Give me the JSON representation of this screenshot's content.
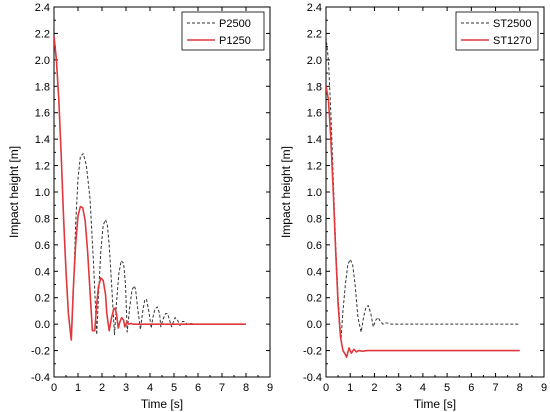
{
  "chart_data": [
    {
      "type": "line",
      "xlabel": "Time [s]",
      "ylabel": "Impact height [m]",
      "xlim": [
        0,
        9
      ],
      "ylim": [
        -0.4,
        2.4
      ],
      "xticks": [
        "0",
        "1",
        "2",
        "3",
        "4",
        "5",
        "6",
        "7",
        "8",
        "9"
      ],
      "yticks": [
        "-0.4",
        "-0.2",
        "0.0",
        "0.2",
        "0.4",
        "0.6",
        "0.8",
        "1.0",
        "1.2",
        "1.4",
        "1.6",
        "1.8",
        "2.0",
        "2.2",
        "2.4"
      ],
      "legend_position": "top-right",
      "series": [
        {
          "name": "P2500",
          "style": "dashed",
          "color": "#333333",
          "x": [
            0,
            0.1,
            0.2,
            0.3,
            0.4,
            0.5,
            0.6,
            0.72,
            0.8,
            0.9,
            1.0,
            1.1,
            1.22,
            1.35,
            1.5,
            1.65,
            1.78,
            1.85,
            1.95,
            2.05,
            2.15,
            2.22,
            2.3,
            2.4,
            2.52,
            2.6,
            2.7,
            2.8,
            2.9,
            2.98,
            3.05,
            3.15,
            3.25,
            3.35,
            3.4,
            3.5,
            3.6,
            3.7,
            3.78,
            3.85,
            3.95,
            4.05,
            4.12,
            4.2,
            4.3,
            4.4,
            4.45,
            4.55,
            4.65,
            4.73,
            4.8,
            4.9,
            5.0,
            5.05,
            5.15,
            5.25,
            5.35,
            5.42,
            5.55,
            5.7,
            5.85,
            6.0,
            8.0
          ],
          "y": [
            2.18,
            2.0,
            1.7,
            1.28,
            0.8,
            0.4,
            0.08,
            -0.12,
            0.2,
            0.75,
            1.1,
            1.27,
            1.29,
            1.2,
            0.95,
            0.45,
            -0.08,
            0.2,
            0.55,
            0.75,
            0.79,
            0.75,
            0.6,
            0.3,
            -0.08,
            0.15,
            0.38,
            0.48,
            0.46,
            0.3,
            -0.06,
            0.12,
            0.26,
            0.29,
            0.26,
            0.1,
            -0.04,
            0.1,
            0.18,
            0.19,
            0.1,
            -0.03,
            0.05,
            0.11,
            0.13,
            0.08,
            -0.02,
            0.04,
            0.08,
            0.08,
            0.04,
            -0.02,
            0.03,
            0.05,
            0.03,
            -0.01,
            0.02,
            0.02,
            0.0,
            0.005,
            0.0,
            0.0,
            0.0
          ]
        },
        {
          "name": "P1250",
          "style": "solid",
          "color": "#e0383c",
          "x": [
            0,
            0.1,
            0.2,
            0.3,
            0.4,
            0.5,
            0.6,
            0.72,
            0.8,
            0.9,
            1.0,
            1.1,
            1.2,
            1.3,
            1.4,
            1.5,
            1.6,
            1.7,
            1.78,
            1.85,
            1.95,
            2.05,
            2.15,
            2.2,
            2.3,
            2.4,
            2.5,
            2.55,
            2.6,
            2.68,
            2.75,
            2.82,
            2.9,
            2.95,
            3.0,
            3.05,
            3.1,
            3.2,
            3.3,
            3.5,
            8.0
          ],
          "y": [
            2.18,
            2.0,
            1.7,
            1.28,
            0.8,
            0.4,
            0.08,
            -0.12,
            0.25,
            0.6,
            0.82,
            0.89,
            0.88,
            0.78,
            0.55,
            0.25,
            -0.05,
            -0.05,
            0.15,
            0.28,
            0.35,
            0.33,
            0.22,
            0.08,
            -0.05,
            0.05,
            0.12,
            0.12,
            0.08,
            -0.03,
            0.02,
            0.05,
            0.03,
            -0.02,
            0.0,
            0.02,
            0.0,
            0.005,
            0.0,
            0.0,
            0.0
          ]
        }
      ]
    },
    {
      "type": "line",
      "xlabel": "Time [s]",
      "ylabel": "Impact height [m]",
      "xlim": [
        0,
        9
      ],
      "ylim": [
        -0.4,
        2.4
      ],
      "xticks": [
        "0",
        "1",
        "2",
        "3",
        "4",
        "5",
        "6",
        "7",
        "8",
        "9"
      ],
      "yticks": [
        "-0.4",
        "-0.2",
        "0.0",
        "0.2",
        "0.4",
        "0.6",
        "0.8",
        "1.0",
        "1.2",
        "1.4",
        "1.6",
        "1.8",
        "2.0",
        "2.2",
        "2.4"
      ],
      "legend_position": "top-right",
      "series": [
        {
          "name": "ST2500",
          "style": "dashed",
          "color": "#333333",
          "x": [
            0,
            0.1,
            0.2,
            0.3,
            0.4,
            0.5,
            0.62,
            0.7,
            0.8,
            0.9,
            1.0,
            1.1,
            1.2,
            1.32,
            1.45,
            1.55,
            1.65,
            1.75,
            1.85,
            1.95,
            2.05,
            2.15,
            2.25,
            2.35,
            2.5,
            2.7,
            8.0
          ],
          "y": [
            2.17,
            2.0,
            1.6,
            1.1,
            0.6,
            0.2,
            -0.12,
            0.1,
            0.3,
            0.45,
            0.49,
            0.45,
            0.3,
            0.05,
            -0.06,
            0.05,
            0.13,
            0.14,
            0.08,
            -0.02,
            0.03,
            0.05,
            0.02,
            0.0,
            0.01,
            0.0,
            0.0
          ],
          "series_note": ""
        },
        {
          "name": "ST1270",
          "style": "solid",
          "color": "#e0383c",
          "x": [
            0,
            0.1,
            0.2,
            0.3,
            0.4,
            0.5,
            0.6,
            0.7,
            0.8,
            0.85,
            0.95,
            1.05,
            1.15,
            1.25,
            1.35,
            1.5,
            1.7,
            8.0
          ],
          "y": [
            1.8,
            1.7,
            1.4,
            1.0,
            0.55,
            0.15,
            -0.1,
            -0.2,
            -0.23,
            -0.25,
            -0.18,
            -0.22,
            -0.19,
            -0.21,
            -0.2,
            -0.205,
            -0.2,
            -0.2
          ]
        }
      ]
    }
  ]
}
